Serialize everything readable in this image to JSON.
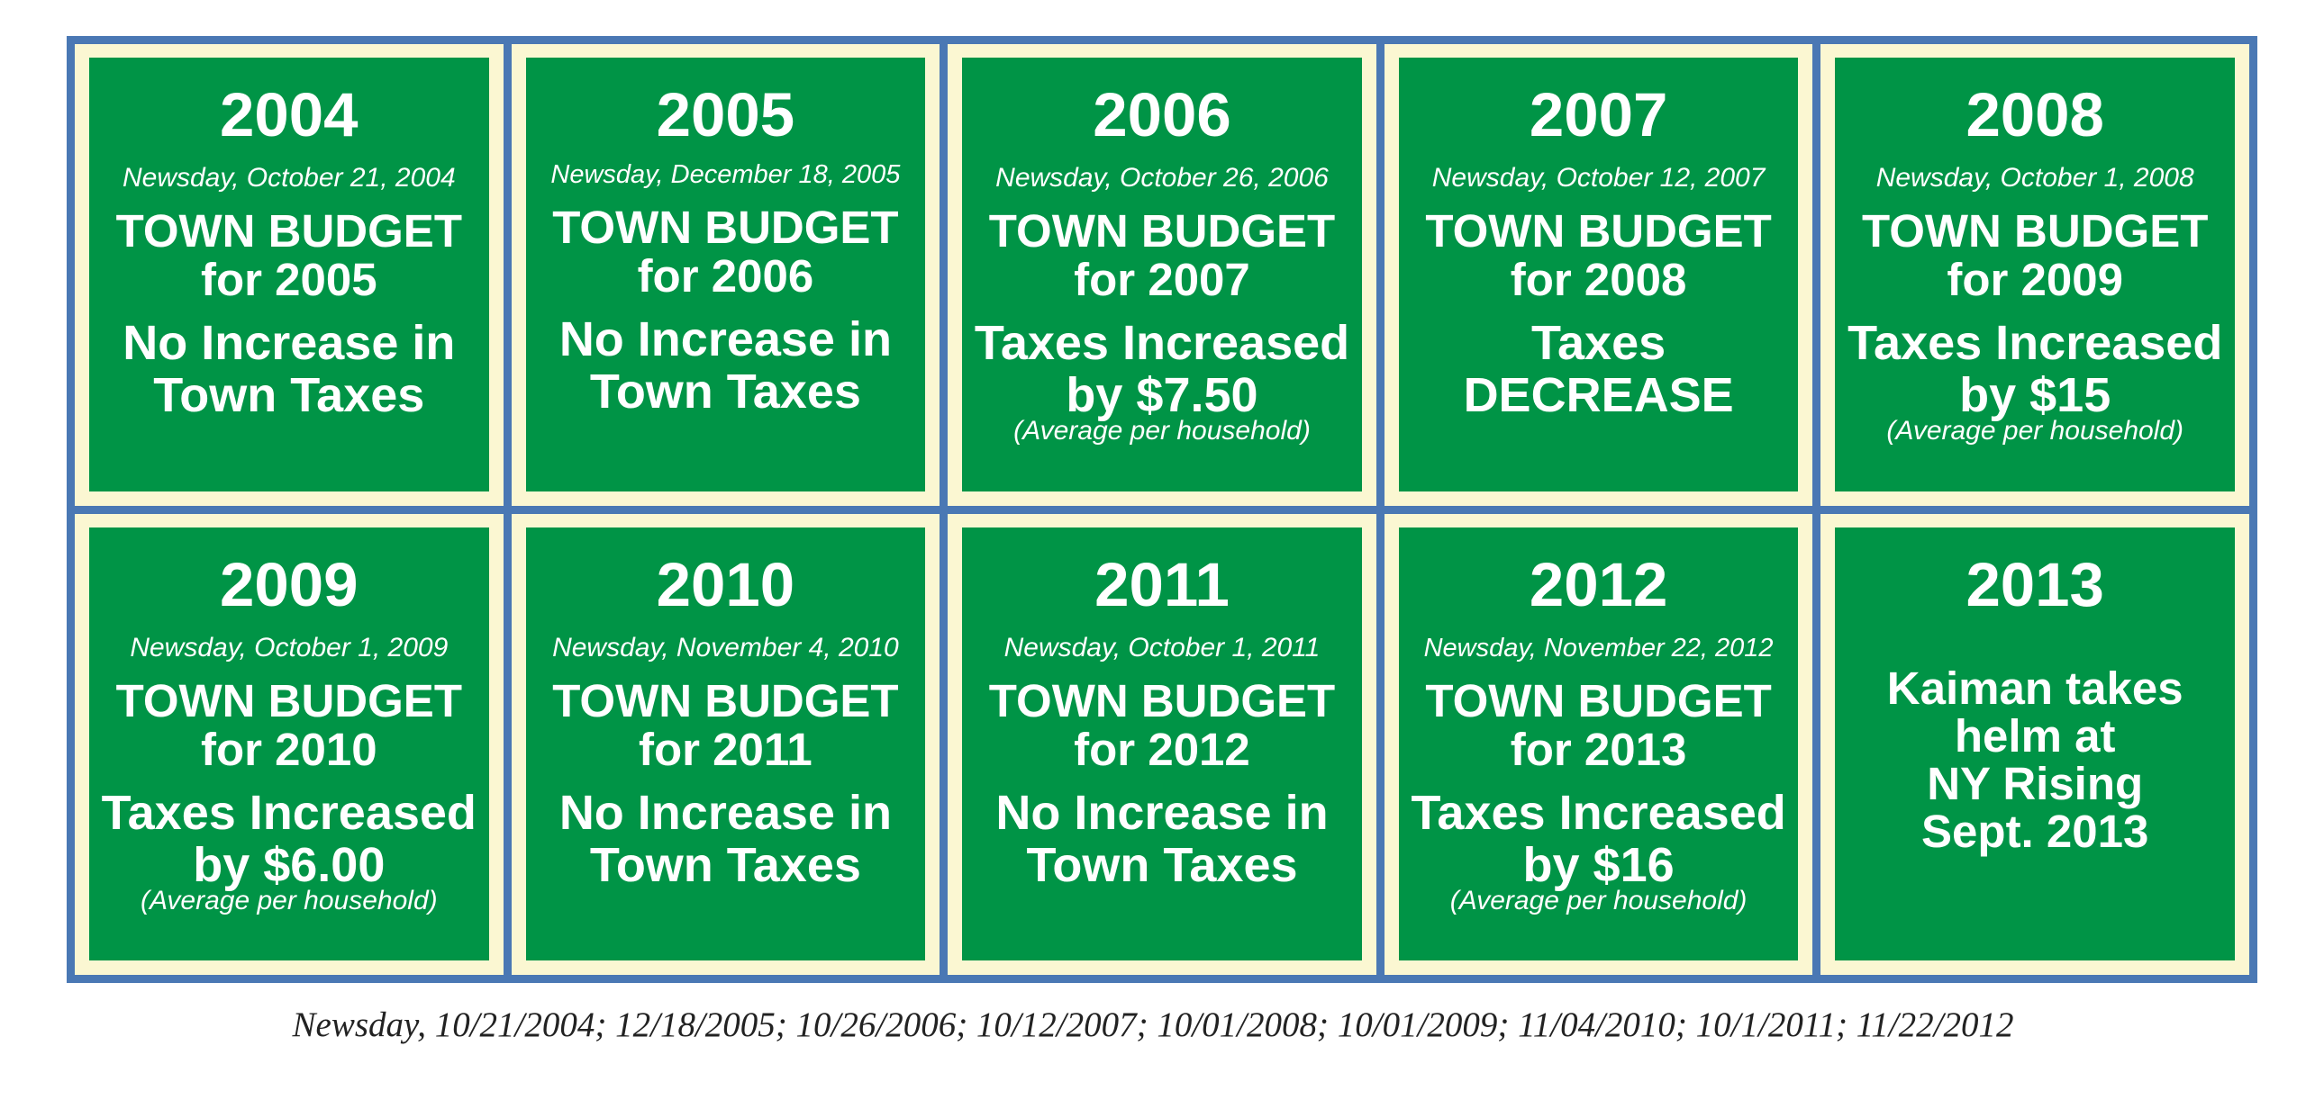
{
  "cards": [
    {
      "year": "2004",
      "source": "Newsday, October 21, 2004",
      "budget_line1": "TOWN BUDGET",
      "budget_line2": "for 2005",
      "outcome_line1": "No Increase in",
      "outcome_line2": "Town Taxes",
      "note": ""
    },
    {
      "year": "2005",
      "source": "Newsday, December 18, 2005",
      "budget_line1": "TOWN BUDGET",
      "budget_line2": "for 2006",
      "outcome_line1": "No Increase in",
      "outcome_line2": "Town Taxes",
      "note": ""
    },
    {
      "year": "2006",
      "source": "Newsday, October 26, 2006",
      "budget_line1": "TOWN BUDGET",
      "budget_line2": "for 2007",
      "outcome_line1": "Taxes Increased",
      "outcome_line2": "by $7.50",
      "note": "(Average per household)"
    },
    {
      "year": "2007",
      "source": "Newsday, October 12, 2007",
      "budget_line1": "TOWN BUDGET",
      "budget_line2": "for 2008",
      "outcome_line1": "Taxes",
      "outcome_line2": "DECREASE",
      "note": ""
    },
    {
      "year": "2008",
      "source": "Newsday, October 1, 2008",
      "budget_line1": "TOWN BUDGET",
      "budget_line2": "for 2009",
      "outcome_line1": "Taxes Increased",
      "outcome_line2": "by $15",
      "note": "(Average per household)"
    },
    {
      "year": "2009",
      "source": "Newsday, October 1, 2009",
      "budget_line1": "TOWN BUDGET",
      "budget_line2": "for 2010",
      "outcome_line1": "Taxes Increased",
      "outcome_line2": "by $6.00",
      "note": "(Average per household)"
    },
    {
      "year": "2010",
      "source": "Newsday, November 4, 2010",
      "budget_line1": "TOWN BUDGET",
      "budget_line2": "for 2011",
      "outcome_line1": "No Increase in",
      "outcome_line2": "Town Taxes",
      "note": ""
    },
    {
      "year": "2011",
      "source": "Newsday, October 1, 2011",
      "budget_line1": "TOWN BUDGET",
      "budget_line2": "for 2012",
      "outcome_line1": "No Increase in",
      "outcome_line2": "Town Taxes",
      "note": ""
    },
    {
      "year": "2012",
      "source": "Newsday, November 22, 2012",
      "budget_line1": "TOWN BUDGET",
      "budget_line2": "for 2013",
      "outcome_line1": "Taxes Increased",
      "outcome_line2": "by $16",
      "note": "(Average per household)"
    }
  ],
  "final_card": {
    "year": "2013",
    "lines": [
      "Kaiman takes",
      "helm at",
      "NY Rising",
      "Sept. 2013"
    ]
  },
  "caption": "Newsday, 10/21/2004; 12/18/2005; 10/26/2006; 10/12/2007; 10/01/2008; 10/01/2009; 11/04/2010; 10/1/2011; 11/22/2012",
  "colors": {
    "frame_blue": "#4a78b4",
    "mat_cream": "#fbf7d2",
    "card_green": "#009446",
    "text_white": "#ffffff"
  }
}
